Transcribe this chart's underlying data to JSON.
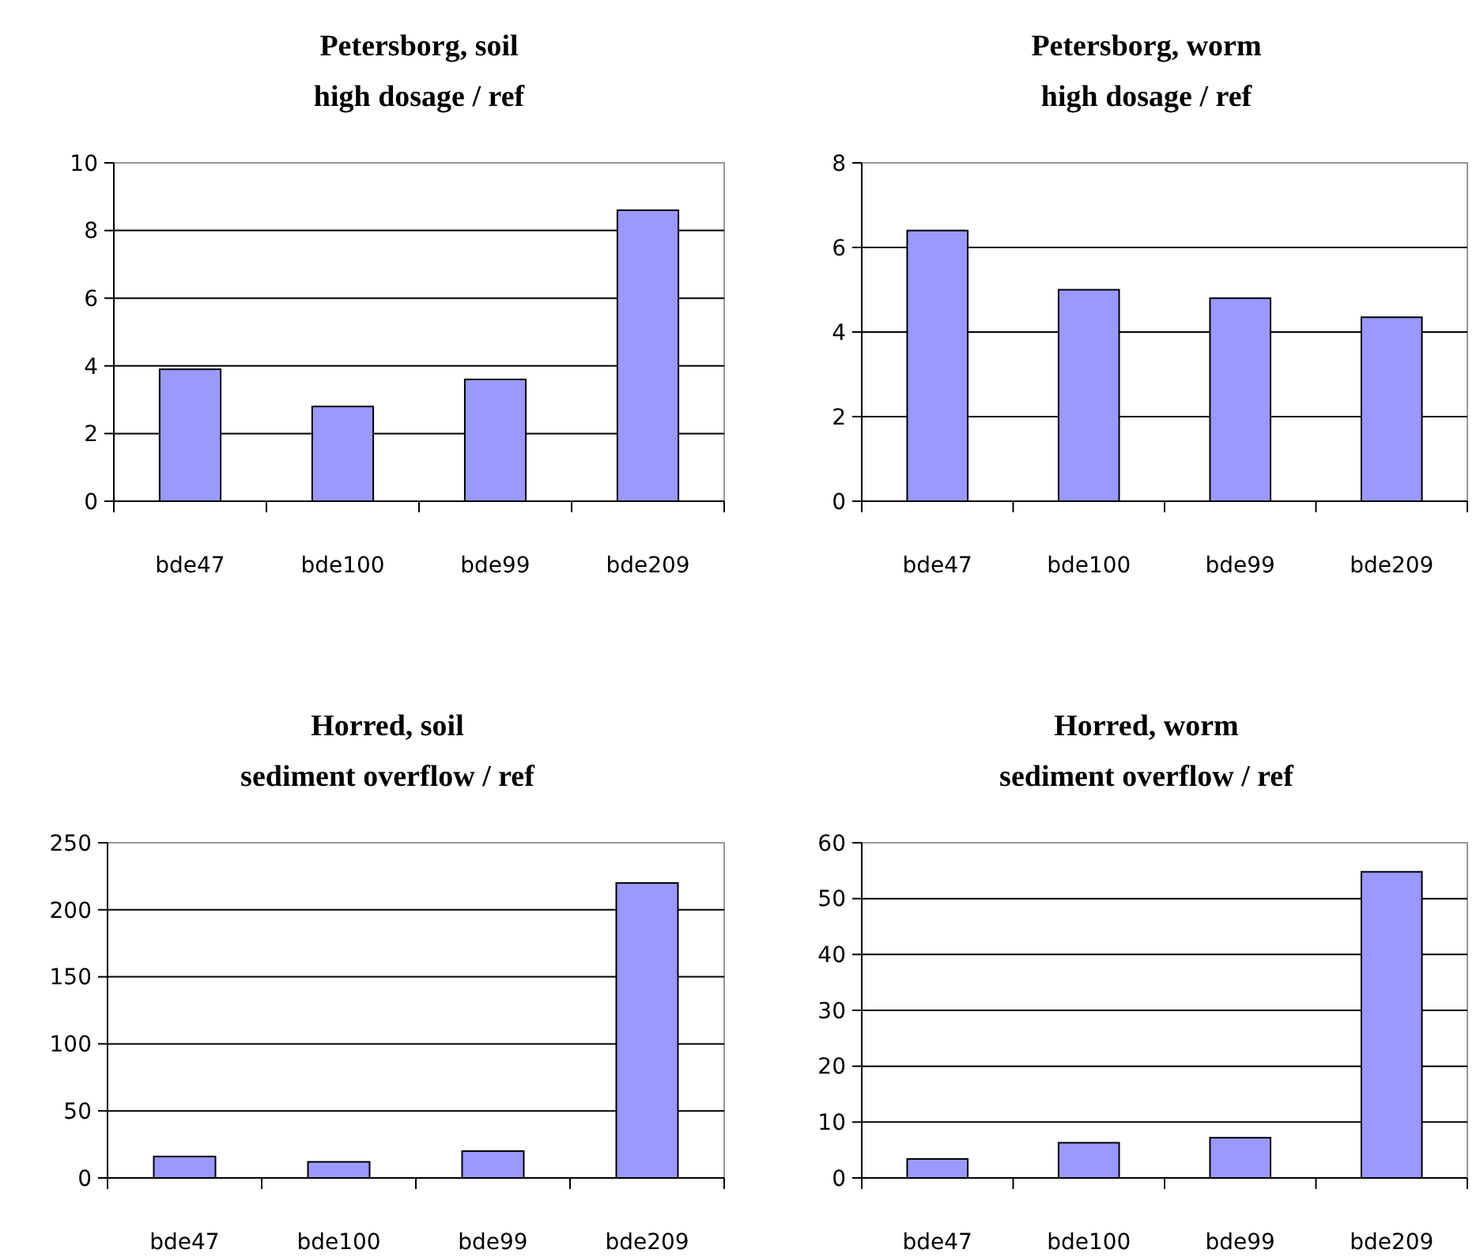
{
  "chart_data": [
    {
      "type": "bar",
      "title": "Petersborg, soil",
      "subtitle": "high dosage / ref",
      "categories": [
        "bde47",
        "bde100",
        "bde99",
        "bde209"
      ],
      "values": [
        3.9,
        2.8,
        3.6,
        8.6
      ],
      "color": "#9999ff",
      "ylim": [
        0,
        10
      ],
      "yticks": [
        0,
        2,
        4,
        6,
        8,
        10
      ],
      "grid": "y"
    },
    {
      "type": "bar",
      "title": "Petersborg, worm",
      "subtitle": "high dosage / ref",
      "categories": [
        "bde47",
        "bde100",
        "bde99",
        "bde209"
      ],
      "values": [
        6.4,
        5.0,
        4.8,
        4.35
      ],
      "color": "#9999ff",
      "ylim": [
        0,
        8
      ],
      "yticks": [
        0,
        2,
        4,
        6,
        8
      ],
      "grid": "y"
    },
    {
      "type": "bar",
      "title": "Horred, soil",
      "subtitle": "sediment overflow / ref",
      "categories": [
        "bde47",
        "bde100",
        "bde99",
        "bde209"
      ],
      "values": [
        16,
        12,
        20,
        220
      ],
      "color": "#9999ff",
      "ylim": [
        0,
        250
      ],
      "yticks": [
        0,
        50,
        100,
        150,
        200,
        250
      ],
      "grid": "y"
    },
    {
      "type": "bar",
      "title": "Horred, worm",
      "subtitle": "sediment overflow / ref",
      "categories": [
        "bde47",
        "bde100",
        "bde99",
        "bde209"
      ],
      "values": [
        3.4,
        6.3,
        7.2,
        54.8
      ],
      "color": "#9999ff",
      "ylim": [
        0,
        60
      ],
      "yticks": [
        0,
        10,
        20,
        30,
        40,
        50,
        60
      ],
      "grid": "y"
    }
  ]
}
